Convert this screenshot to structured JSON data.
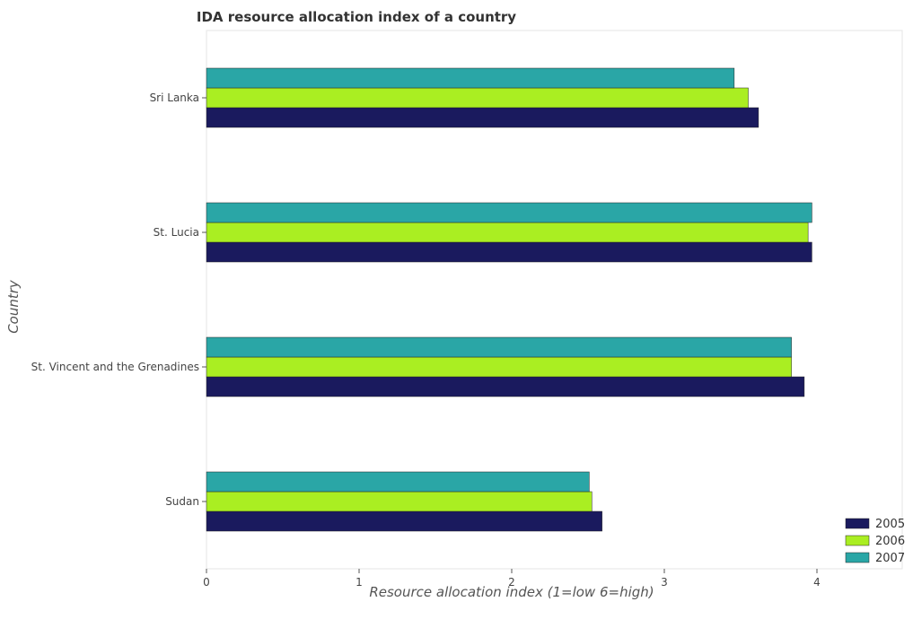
{
  "chart_data": {
    "type": "bar",
    "orientation": "horizontal",
    "title": "IDA resource allocation index of a country",
    "xlabel": "Resource allocation index (1=low 6=high)",
    "ylabel": "Country",
    "categories": [
      "Sri Lanka",
      "St. Lucia",
      "St. Vincent and the Grenadines",
      "Sudan"
    ],
    "series": [
      {
        "name": "2005",
        "color": "#1a1a5e",
        "values": [
          3.617,
          3.967,
          3.917,
          2.592
        ]
      },
      {
        "name": "2006",
        "color": "#aaee22",
        "values": [
          3.55,
          3.942,
          3.833,
          2.525
        ]
      },
      {
        "name": "2007",
        "color": "#2aa6a6",
        "values": [
          3.458,
          3.967,
          3.833,
          2.508
        ]
      }
    ],
    "xlim": [
      0,
      4.1
    ],
    "xticks": [
      0,
      1,
      2,
      3,
      4
    ],
    "xtick_labels": [
      "0",
      "1",
      "2",
      "3",
      "4"
    ],
    "grid": false,
    "legend_position": "bottom-right"
  }
}
